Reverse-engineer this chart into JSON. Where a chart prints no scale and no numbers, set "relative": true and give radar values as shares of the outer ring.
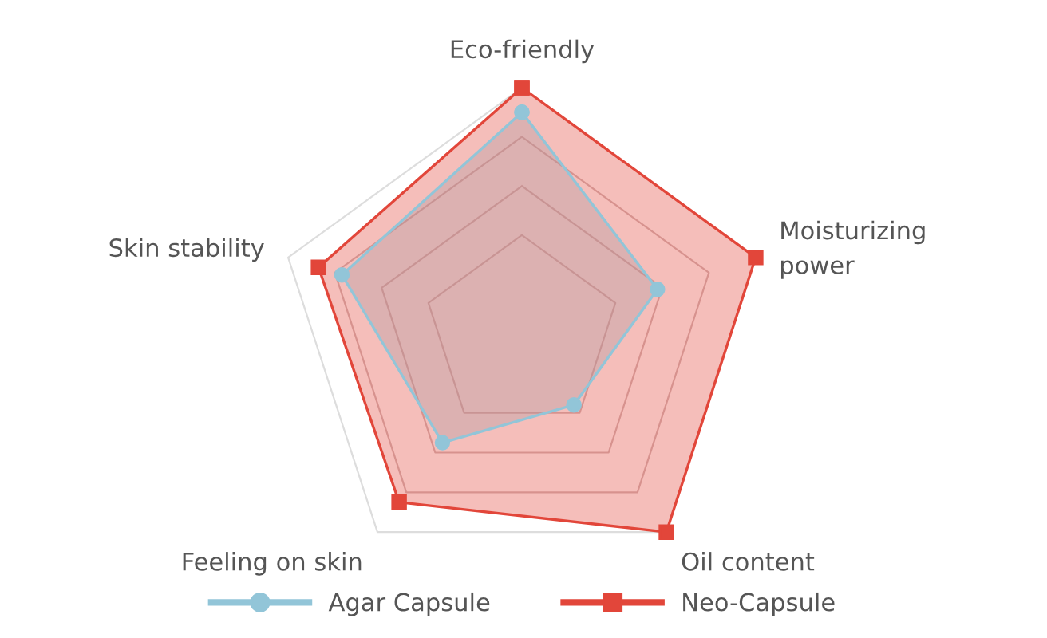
{
  "chart_data": {
    "type": "radar",
    "relative": true,
    "categories": [
      "Eco-friendly",
      "Moisturizing\npower",
      "Oil content",
      "Feeling on skin",
      "Skin stability"
    ],
    "series": [
      {
        "name": "Agar Capsule",
        "color": "#92c5d8",
        "values": [
          0.9,
          0.58,
          0.36,
          0.55,
          0.77
        ],
        "marker": "circle"
      },
      {
        "name": "Neo-Capsule",
        "color": "#e2463a",
        "values": [
          1.0,
          1.0,
          1.0,
          0.85,
          0.87
        ],
        "marker": "square"
      }
    ],
    "legend": "bottom",
    "grid": true
  }
}
